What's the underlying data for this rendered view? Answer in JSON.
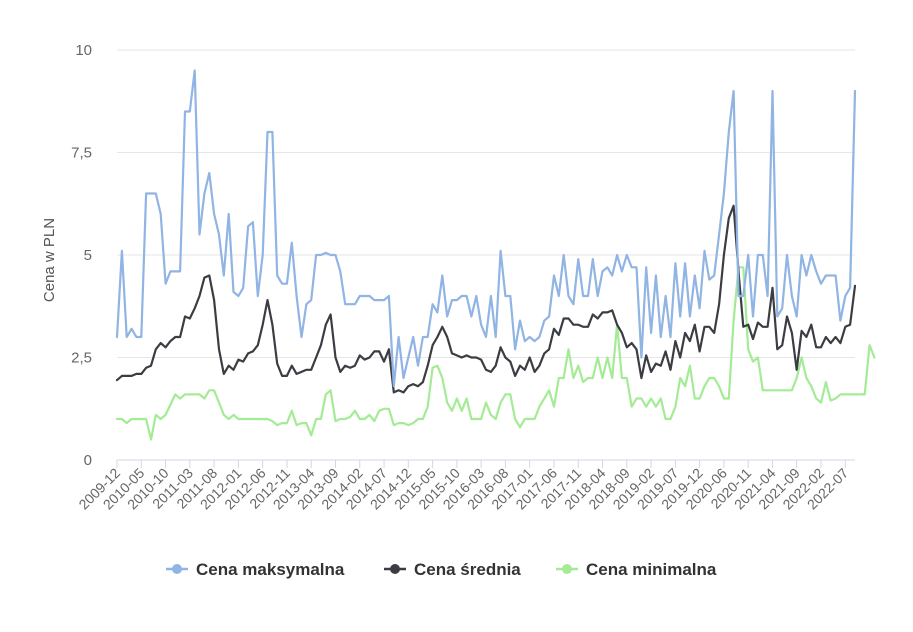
{
  "chart_data": {
    "type": "line",
    "ylabel": "Cena w PLN",
    "ylim": [
      0,
      10
    ],
    "yticks": [
      0,
      2.5,
      5,
      7.5,
      10
    ],
    "ytick_labels": [
      "0",
      "2,5",
      "5",
      "7,5",
      "10"
    ],
    "grid": "horizontal",
    "legend_position": "bottom-center",
    "x_start": "2009-12",
    "x_end": "2022-10",
    "x_tick_labels": [
      "2009-12",
      "2010-05",
      "2010-10",
      "2011-03",
      "2011-08",
      "2012-01",
      "2012-06",
      "2012-11",
      "2013-04",
      "2013-09",
      "2014-02",
      "2014-07",
      "2014-12",
      "2015-05",
      "2015-10",
      "2016-03",
      "2016-08",
      "2017-01",
      "2017-06",
      "2017-11",
      "2018-04",
      "2018-09",
      "2019-02",
      "2019-07",
      "2019-12",
      "2020-06",
      "2020-11",
      "2021-04",
      "2021-09",
      "2022-02",
      "2022-07"
    ],
    "series": [
      {
        "name": "Cena maksymalna",
        "color": "#90b4e3",
        "values": [
          3.0,
          5.1,
          3.0,
          3.2,
          3.0,
          3.0,
          6.5,
          6.5,
          6.5,
          6.0,
          4.3,
          4.6,
          4.6,
          4.6,
          8.5,
          8.5,
          9.5,
          5.5,
          6.5,
          7.0,
          6.0,
          5.5,
          4.5,
          6.0,
          4.1,
          4.0,
          4.2,
          5.7,
          5.8,
          4.0,
          5.0,
          8.0,
          8.0,
          4.5,
          4.3,
          4.3,
          5.3,
          4.0,
          3.0,
          3.8,
          3.9,
          5.0,
          5.0,
          5.05,
          5.0,
          5.0,
          4.6,
          3.8,
          3.8,
          3.8,
          4.0,
          4.0,
          4.0,
          3.9,
          3.9,
          3.9,
          4.0,
          1.8,
          3.0,
          2.0,
          2.5,
          3.0,
          2.3,
          3.0,
          3.0,
          3.8,
          3.6,
          4.5,
          3.5,
          3.9,
          3.9,
          4.0,
          4.0,
          3.5,
          4.0,
          3.3,
          3.0,
          4.0,
          3.0,
          5.1,
          4.0,
          4.0,
          2.7,
          3.4,
          2.9,
          3.0,
          2.9,
          3.0,
          3.4,
          3.5,
          4.5,
          4.0,
          5.0,
          4.0,
          3.8,
          4.9,
          4.0,
          4.0,
          4.9,
          4.0,
          4.6,
          4.7,
          4.5,
          5.0,
          4.6,
          5.0,
          4.7,
          4.7,
          2.5,
          4.7,
          3.1,
          4.5,
          3.0,
          4.0,
          3.0,
          4.8,
          3.5,
          4.8,
          3.5,
          4.5,
          3.7,
          5.1,
          4.4,
          4.5,
          5.5,
          6.5,
          8.0,
          9.0,
          4.0,
          4.0,
          5.0,
          3.5,
          5.0,
          5.0,
          4.0,
          9.0,
          3.5,
          3.7,
          5.0,
          4.0,
          3.5,
          5.0,
          4.5,
          5.0,
          4.6,
          4.3,
          4.5,
          4.5,
          4.5,
          3.4,
          4.0,
          4.2,
          9.0
        ]
      },
      {
        "name": "Cena średnia",
        "color": "#3b3d43",
        "values": [
          1.95,
          2.05,
          2.05,
          2.05,
          2.1,
          2.1,
          2.25,
          2.3,
          2.7,
          2.85,
          2.75,
          2.9,
          3.0,
          3.0,
          3.5,
          3.45,
          3.7,
          4.0,
          4.45,
          4.5,
          3.9,
          2.7,
          2.1,
          2.3,
          2.2,
          2.45,
          2.4,
          2.6,
          2.65,
          2.8,
          3.3,
          3.9,
          3.3,
          2.35,
          2.05,
          2.05,
          2.3,
          2.1,
          2.15,
          2.2,
          2.2,
          2.5,
          2.8,
          3.3,
          3.55,
          2.5,
          2.15,
          2.3,
          2.25,
          2.3,
          2.55,
          2.45,
          2.5,
          2.65,
          2.65,
          2.4,
          2.7,
          1.65,
          1.7,
          1.65,
          1.8,
          1.85,
          1.8,
          1.9,
          2.3,
          2.8,
          3.0,
          3.25,
          3.0,
          2.6,
          2.55,
          2.5,
          2.55,
          2.5,
          2.5,
          2.45,
          2.2,
          2.15,
          2.3,
          2.75,
          2.5,
          2.4,
          2.05,
          2.3,
          2.2,
          2.5,
          2.15,
          2.3,
          2.6,
          2.7,
          3.2,
          3.05,
          3.45,
          3.45,
          3.3,
          3.3,
          3.25,
          3.25,
          3.55,
          3.45,
          3.6,
          3.6,
          3.65,
          3.3,
          3.1,
          2.75,
          2.85,
          2.7,
          2.0,
          2.55,
          2.15,
          2.35,
          2.3,
          2.65,
          2.2,
          2.9,
          2.5,
          3.1,
          2.9,
          3.3,
          2.65,
          3.25,
          3.25,
          3.1,
          3.8,
          5.0,
          5.9,
          6.2,
          4.6,
          3.25,
          3.3,
          2.95,
          3.35,
          3.25,
          3.25,
          4.2,
          2.7,
          2.8,
          3.5,
          3.1,
          2.2,
          3.15,
          3.0,
          3.3,
          2.75,
          2.75,
          3.0,
          2.85,
          3.0,
          2.85,
          3.25,
          3.3,
          4.25
        ]
      },
      {
        "name": "Cena minimalna",
        "color": "#a4eb95",
        "values": [
          1.0,
          1.0,
          0.9,
          1.0,
          1.0,
          1.0,
          1.0,
          0.5,
          1.1,
          1.0,
          1.1,
          1.35,
          1.6,
          1.5,
          1.6,
          1.6,
          1.6,
          1.6,
          1.5,
          1.7,
          1.7,
          1.4,
          1.1,
          1.0,
          1.1,
          1.0,
          1.0,
          1.0,
          1.0,
          1.0,
          1.0,
          1.0,
          0.95,
          0.85,
          0.9,
          0.9,
          1.2,
          0.85,
          0.9,
          0.9,
          0.6,
          1.0,
          1.0,
          1.6,
          1.7,
          0.95,
          1.0,
          1.0,
          1.05,
          1.2,
          1.0,
          1.0,
          1.1,
          0.95,
          1.2,
          1.25,
          1.25,
          0.85,
          0.9,
          0.9,
          0.85,
          0.9,
          1.0,
          1.0,
          1.3,
          2.25,
          2.3,
          2.0,
          1.4,
          1.2,
          1.5,
          1.2,
          1.5,
          1.0,
          1.0,
          1.0,
          1.4,
          1.1,
          1.0,
          1.4,
          1.6,
          1.6,
          1.0,
          0.8,
          1.0,
          1.0,
          1.0,
          1.3,
          1.5,
          1.7,
          1.3,
          2.0,
          2.0,
          2.7,
          2.0,
          2.3,
          1.9,
          2.0,
          2.0,
          2.5,
          2.0,
          2.5,
          2.0,
          3.3,
          2.0,
          2.0,
          1.3,
          1.5,
          1.5,
          1.3,
          1.5,
          1.3,
          1.5,
          1.0,
          1.0,
          1.3,
          2.0,
          1.8,
          2.3,
          1.5,
          1.5,
          1.8,
          2.0,
          2.0,
          1.8,
          1.5,
          1.5,
          3.4,
          4.7,
          4.7,
          2.7,
          2.4,
          2.5,
          1.7,
          1.7,
          1.7,
          1.7,
          1.7,
          1.7,
          1.7,
          2.0,
          2.5,
          2.0,
          1.8,
          1.5,
          1.4,
          1.9,
          1.45,
          1.5,
          1.6,
          1.6,
          1.6,
          1.6,
          1.6,
          1.6,
          2.8,
          2.5
        ]
      }
    ]
  }
}
